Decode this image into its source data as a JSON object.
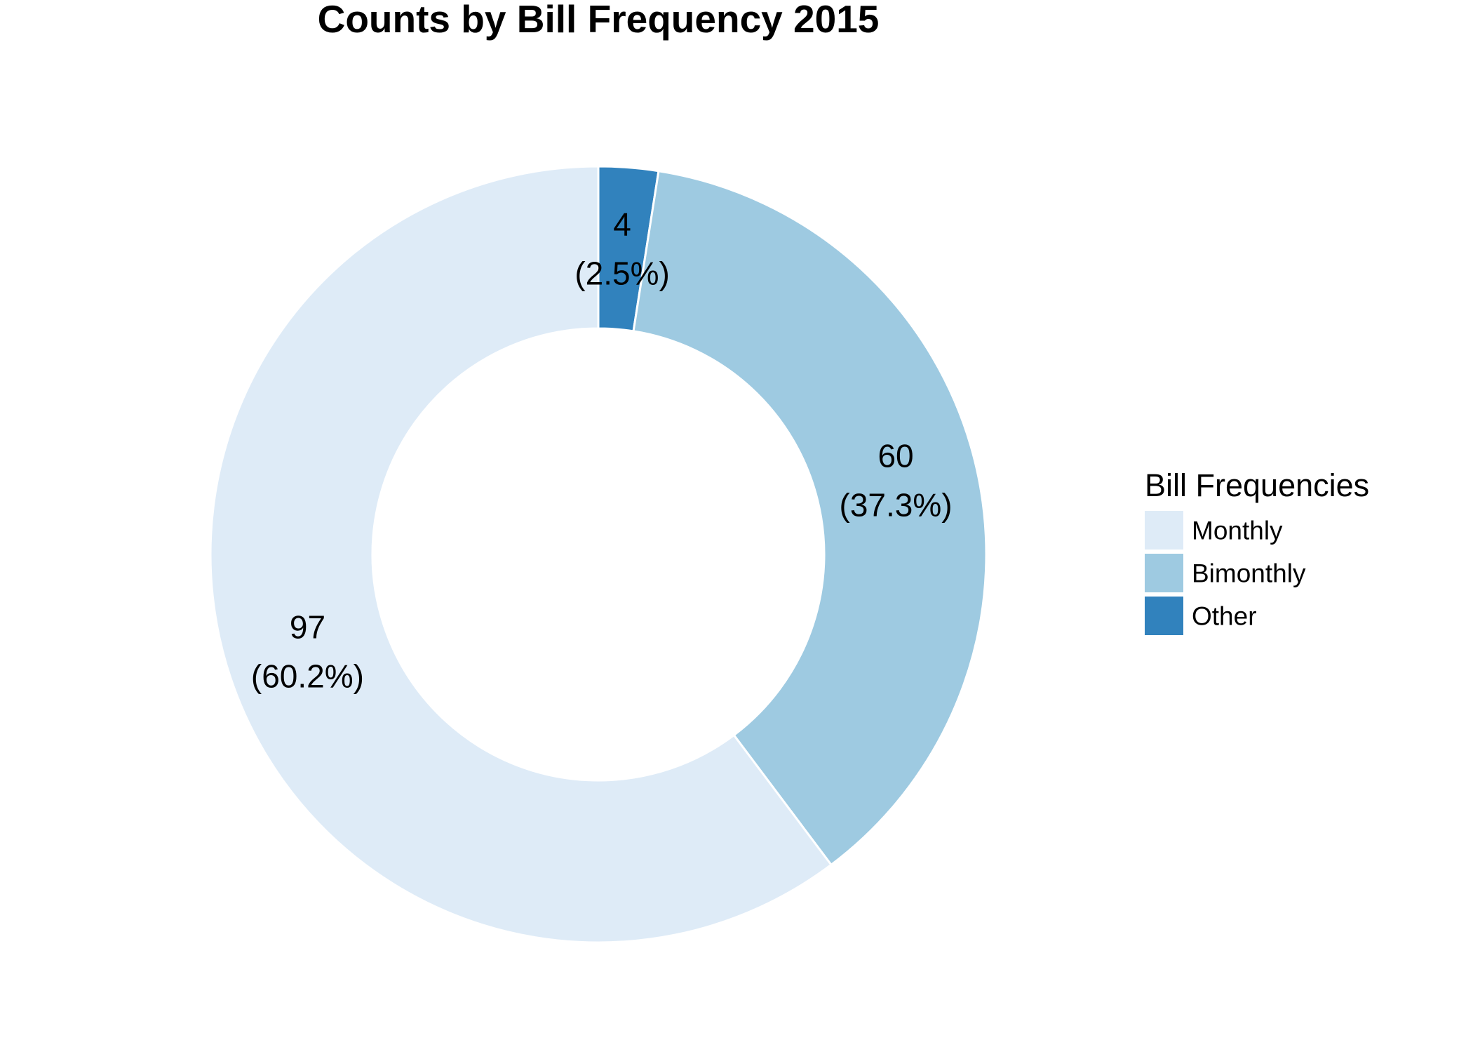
{
  "chart_data": {
    "type": "pie",
    "donut": true,
    "title": "Counts by Bill Frequency 2015",
    "legend_title": "Bill Frequencies",
    "legend_position": "right",
    "start": "12 o'clock",
    "direction": "clockwise",
    "slice_order": [
      "Other",
      "Bimonthly",
      "Monthly"
    ],
    "categories": [
      "Monthly",
      "Bimonthly",
      "Other"
    ],
    "values": [
      97,
      60,
      4
    ],
    "percent_labels": [
      "(60.2%)",
      "(37.3%)",
      "(2.5%)"
    ],
    "colors": [
      "#deebf7",
      "#9ecae1",
      "#3182bd"
    ]
  }
}
